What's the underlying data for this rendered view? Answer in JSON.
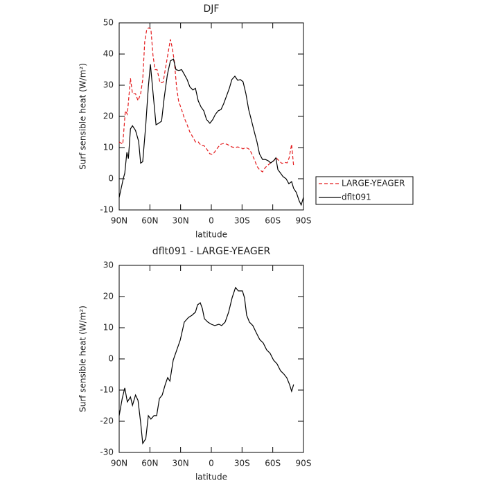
{
  "chart_data": [
    {
      "type": "line",
      "title": "DJF",
      "x_label": "latitude",
      "y_label": "Surf sensible heat (W/m²)",
      "xlim": [
        90,
        -90
      ],
      "xticks": [
        {
          "value": 90,
          "label": "90N"
        },
        {
          "value": 60,
          "label": "60N"
        },
        {
          "value": 30,
          "label": "30N"
        },
        0,
        {
          "value": -30,
          "label": "30S"
        },
        {
          "value": -60,
          "label": "60S"
        },
        {
          "value": -90,
          "label": "90S"
        }
      ],
      "ylim": [
        -10,
        50
      ],
      "yticks": [
        -10,
        0,
        10,
        20,
        30,
        40,
        50
      ],
      "legend": "right",
      "series": [
        {
          "name": "LARGE-YEAGER",
          "color": "#e41a1c",
          "dash": true,
          "x": [
            90,
            86.5,
            84,
            82,
            79,
            77,
            74,
            71.6,
            69,
            67,
            65,
            63,
            61,
            59,
            57,
            55,
            53,
            50,
            47,
            45,
            42,
            40,
            38,
            36,
            34,
            32,
            29,
            26.4,
            23.6,
            21,
            18,
            15.5,
            12.8,
            10,
            7.4,
            4.7,
            1.4,
            -1.4,
            -4,
            -6.8,
            -9.5,
            -12,
            -15,
            -17.6,
            -20,
            -23,
            -25.7,
            -28.4,
            -31,
            -33.8,
            -36.5,
            -39,
            -42,
            -44.6,
            -47,
            -50,
            -52.7,
            -55.4,
            -58,
            -61,
            -63.5,
            -66,
            -69,
            -71.6,
            -74,
            -76,
            -78.4,
            -80.4
          ],
          "values": [
            11.8,
            11.1,
            21.8,
            20.7,
            32.2,
            27.3,
            27.3,
            25,
            27.3,
            31.8,
            44,
            48,
            48.4,
            48,
            39.6,
            35,
            35,
            30.7,
            31,
            35,
            40.7,
            44.7,
            41.8,
            37.3,
            29.5,
            25,
            22.2,
            19.5,
            17.3,
            15,
            13.3,
            11.8,
            11.8,
            10.7,
            10.7,
            9.6,
            8,
            7.8,
            8.9,
            10.2,
            11.1,
            11.3,
            11.1,
            10.7,
            10.2,
            10,
            10.2,
            10,
            9.6,
            10,
            9.6,
            8.4,
            6.2,
            4,
            2.9,
            2.2,
            3.6,
            4.4,
            5.1,
            5.8,
            6.7,
            5.8,
            4.9,
            5.3,
            5.1,
            6.7,
            11.1,
            4
          ]
        },
        {
          "name": "dflt091",
          "color": "#000000",
          "dash": false,
          "x": [
            90,
            86,
            84.5,
            82.5,
            81,
            79,
            77,
            74,
            71,
            69,
            67,
            64,
            61.5,
            59.5,
            56.8,
            54,
            51.4,
            48.6,
            46,
            43,
            40,
            37,
            34.5,
            31.8,
            29,
            26.4,
            23.6,
            21,
            18,
            15.5,
            12.8,
            10,
            7.4,
            4.7,
            1.4,
            -1.4,
            -4,
            -6.8,
            -9.5,
            -12,
            -15,
            -17.6,
            -20,
            -23,
            -25.7,
            -28.4,
            -31,
            -33.8,
            -36.5,
            -39,
            -42,
            -44.6,
            -47,
            -50,
            -52.7,
            -55.4,
            -58,
            -61,
            -63,
            -65,
            -67.6,
            -70,
            -73,
            -75.7,
            -78.4,
            -80.4,
            -83,
            -85.8,
            -87.8,
            -89.9
          ],
          "values": [
            -6,
            0,
            1.8,
            8.5,
            6.5,
            16,
            17,
            15.5,
            12,
            5,
            5.5,
            17.3,
            29.5,
            36.7,
            27,
            17.3,
            17.8,
            18.5,
            26,
            33.3,
            37.8,
            38.4,
            35,
            34.7,
            35,
            33.5,
            31.8,
            29.5,
            28.5,
            29,
            25,
            23,
            21.8,
            19,
            17.8,
            19,
            20.7,
            21.8,
            22.2,
            24,
            26.7,
            29,
            31.8,
            32.9,
            31.6,
            31.8,
            31.1,
            27.3,
            22.2,
            19,
            15,
            11.8,
            8,
            6.2,
            6.2,
            5.8,
            5.1,
            5.8,
            6.7,
            2.9,
            1.8,
            0.7,
            0,
            -1.6,
            -0.9,
            -3.1,
            -4.4,
            -7.1,
            -8.4,
            -6
          ]
        }
      ]
    },
    {
      "type": "line",
      "title": "dflt091 - LARGE-YEAGER",
      "x_label": "latitude",
      "y_label": "Surf sensible heat (W/m²)",
      "xlim": [
        90,
        -90
      ],
      "xticks": [
        {
          "value": 90,
          "label": "90N"
        },
        {
          "value": 60,
          "label": "60N"
        },
        {
          "value": 30,
          "label": "30N"
        },
        0,
        {
          "value": -30,
          "label": "30S"
        },
        {
          "value": -60,
          "label": "60S"
        },
        {
          "value": -90,
          "label": "90S"
        }
      ],
      "ylim": [
        -30,
        30
      ],
      "yticks": [
        -30,
        -20,
        -10,
        0,
        10,
        20,
        30
      ],
      "series": [
        {
          "color": "#000000",
          "dash": false,
          "x": [
            90,
            87,
            84.5,
            82,
            79,
            77,
            74,
            71.6,
            69,
            67,
            64,
            61.5,
            59,
            56,
            53.4,
            50.7,
            48,
            45,
            42.6,
            40.5,
            37.2,
            30.4,
            26.4,
            22.3,
            18.9,
            15.5,
            13.5,
            10.8,
            8.8,
            6.8,
            3.4,
            0,
            -3.4,
            -7.4,
            -10.1,
            -13.5,
            -16.9,
            -20.3,
            -23.6,
            -26.4,
            -30.4,
            -32.4,
            -34.5,
            -37.2,
            -40.5,
            -43.9,
            -47.3,
            -50.7,
            -54,
            -57.4,
            -60.8,
            -64.2,
            -67.6,
            -70.9,
            -73.6,
            -76.4,
            -78.4,
            -80.4
          ],
          "values": [
            -18.2,
            -12.7,
            -9.3,
            -13.8,
            -12.2,
            -14.9,
            -11.6,
            -13.3,
            -20.4,
            -27.1,
            -25.6,
            -18.2,
            -19.3,
            -18.2,
            -18.2,
            -12.7,
            -11.6,
            -8.2,
            -6,
            -7.1,
            -0.4,
            6,
            11.8,
            13.3,
            14,
            15,
            17.3,
            18,
            16.2,
            12.9,
            11.8,
            11.1,
            10.7,
            11.1,
            10.7,
            11.8,
            15,
            19.6,
            22.9,
            21.8,
            21.8,
            19.6,
            14,
            11.8,
            10.7,
            8.4,
            6.2,
            5.1,
            2.9,
            1.8,
            -0.4,
            -1.6,
            -3.8,
            -4.9,
            -6,
            -8.2,
            -10.4,
            -8.2
          ]
        }
      ]
    }
  ]
}
